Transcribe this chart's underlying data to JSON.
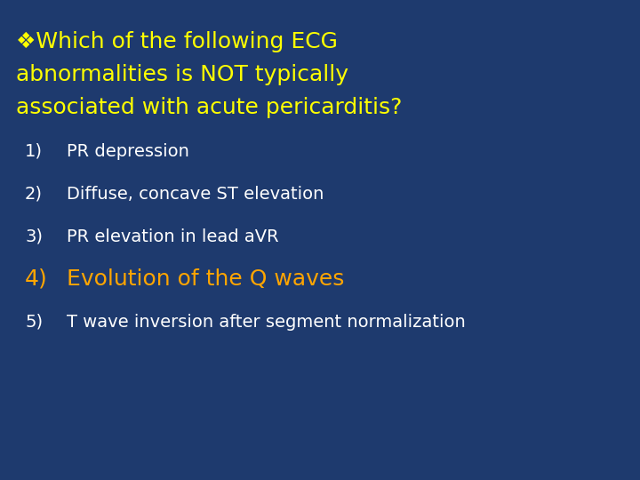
{
  "background_color": "#1e3a6e",
  "title_text_line1": "❖Which of the following ECG",
  "title_text_line2": "abnormalities is NOT typically",
  "title_text_line3": "associated with acute pericarditis?",
  "title_color": "#ffff00",
  "title_fontsize": 18,
  "title_fontweight": "normal",
  "options": [
    {
      "num": "1)",
      "text": "PR depression",
      "color": "#ffffff",
      "num_color": "#ffffff",
      "fontsize": 14,
      "bold": false
    },
    {
      "num": "2)",
      "text": "Diffuse, concave ST elevation",
      "color": "#ffffff",
      "num_color": "#ffffff",
      "fontsize": 14,
      "bold": false
    },
    {
      "num": "3)",
      "text": "PR elevation in lead aVR",
      "color": "#ffffff",
      "num_color": "#ffffff",
      "fontsize": 14,
      "bold": false
    },
    {
      "num": "4)",
      "text": "Evolution of the Q waves",
      "color": "#ffa500",
      "num_color": "#ffa500",
      "fontsize": 18,
      "bold": false
    },
    {
      "num": "5)",
      "text": "T wave inversion after segment normalization",
      "color": "#ffffff",
      "num_color": "#ffffff",
      "fontsize": 14,
      "bold": false
    }
  ]
}
